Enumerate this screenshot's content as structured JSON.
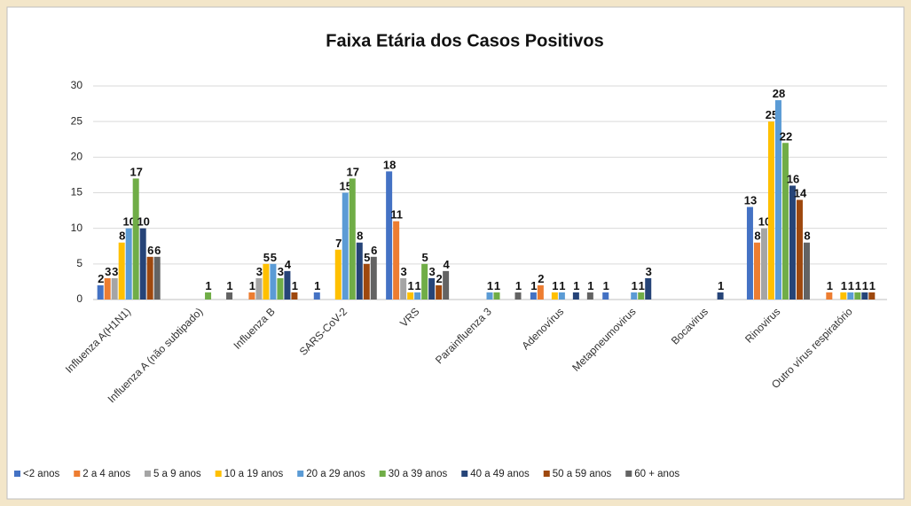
{
  "chart_data": {
    "type": "bar",
    "title": "Faixa Etária dos Casos Positivos",
    "categories": [
      "Influenza A(H1N1)",
      "Influenza A (não subtipado)",
      "Influenza B",
      "SARS-CoV-2",
      "VRS",
      "Parainfluenza 3",
      "Adenovírus",
      "Metapneumovirus",
      "Bocavirus",
      "Rinovirus",
      "Outro vírus respiratório"
    ],
    "series": [
      {
        "name": "<2 anos",
        "color": "#4472c4",
        "values": [
          2,
          0,
          0,
          1,
          18,
          0,
          1,
          1,
          0,
          13,
          0
        ]
      },
      {
        "name": "2 a 4 anos",
        "color": "#ed7d31",
        "values": [
          3,
          0,
          1,
          0,
          11,
          0,
          2,
          0,
          0,
          8,
          1
        ]
      },
      {
        "name": "5 a 9 anos",
        "color": "#a5a5a5",
        "values": [
          3,
          0,
          3,
          0,
          3,
          0,
          0,
          0,
          0,
          10,
          0
        ]
      },
      {
        "name": "10 a 19 anos",
        "color": "#ffc000",
        "values": [
          8,
          0,
          5,
          7,
          1,
          0,
          1,
          0,
          0,
          25,
          1
        ]
      },
      {
        "name": "20 a 29 anos",
        "color": "#5b9bd5",
        "values": [
          10,
          0,
          5,
          15,
          1,
          1,
          1,
          1,
          0,
          28,
          1
        ]
      },
      {
        "name": "30 a 39 anos",
        "color": "#70ad47",
        "values": [
          17,
          1,
          3,
          17,
          5,
          1,
          0,
          1,
          0,
          22,
          1
        ]
      },
      {
        "name": "40 a 49 anos",
        "color": "#264478",
        "values": [
          10,
          0,
          4,
          8,
          3,
          0,
          1,
          3,
          1,
          16,
          1
        ]
      },
      {
        "name": "50 a 59 anos",
        "color": "#9e480e",
        "values": [
          6,
          0,
          1,
          5,
          2,
          0,
          0,
          0,
          0,
          14,
          1
        ]
      },
      {
        "name": "60 + anos",
        "color": "#636363",
        "values": [
          6,
          1,
          0,
          6,
          4,
          1,
          1,
          0,
          0,
          8,
          0
        ]
      }
    ],
    "ylim": [
      0,
      30
    ],
    "yticks": [
      0,
      5,
      10,
      15,
      20,
      25,
      30
    ],
    "grid": true,
    "legend": "bottom"
  }
}
